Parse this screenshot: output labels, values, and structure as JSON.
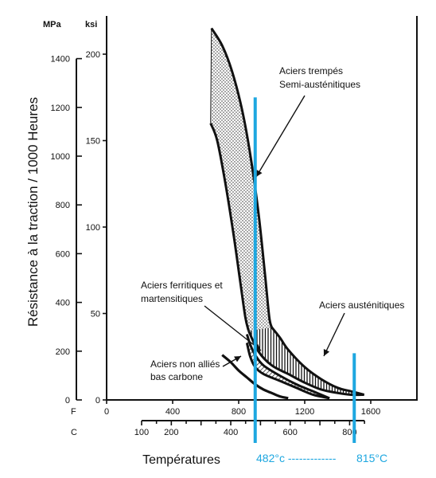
{
  "chart_data": {
    "type": "area",
    "ylabel": "Résistance à la traction / 1000 Heures",
    "xlabel": "Températures",
    "units": {
      "mpa": "MPa",
      "ksi": "ksi",
      "f": "F",
      "c": "C"
    },
    "mpa_ticks": [
      "0",
      "200",
      "400",
      "600",
      "800",
      "1000",
      "1200",
      "1400"
    ],
    "ksi_ticks": [
      "0",
      "50",
      "100",
      "150",
      "200"
    ],
    "f_ticks": [
      "0",
      "400",
      "800",
      "1200",
      "1600"
    ],
    "c_ticks": [
      "100",
      "200",
      "400",
      "600",
      "800"
    ],
    "xlim_F": [
      0,
      1920
    ],
    "ylim_ksi": [
      0,
      220
    ],
    "series": [
      {
        "name": "Aciers trempés Semi-austénitiques",
        "label_lines": [
          "Aciers trempés",
          "Semi-austénitiques"
        ],
        "fill": "dots",
        "upper": [
          [
            635,
            215
          ],
          [
            700,
            205
          ],
          [
            760,
            190
          ],
          [
            820,
            168
          ],
          [
            870,
            142
          ],
          [
            920,
            108
          ],
          [
            960,
            72
          ],
          [
            985,
            48
          ],
          [
            1000,
            42
          ]
        ],
        "lower": [
          [
            630,
            160
          ],
          [
            670,
            150
          ],
          [
            720,
            125
          ],
          [
            770,
            95
          ],
          [
            810,
            68
          ],
          [
            840,
            48
          ],
          [
            860,
            40
          ]
        ]
      },
      {
        "name": "Aciers austénitiques",
        "label_lines": [
          "Aciers austénitiques"
        ],
        "fill": "vertical-hatch",
        "upper": [
          [
            1000,
            42
          ],
          [
            1050,
            36
          ],
          [
            1100,
            29
          ],
          [
            1200,
            19
          ],
          [
            1300,
            12
          ],
          [
            1400,
            7
          ],
          [
            1480,
            5
          ],
          [
            1560,
            3
          ]
        ],
        "lower": [
          [
            860,
            40
          ],
          [
            920,
            28
          ],
          [
            1000,
            20
          ],
          [
            1100,
            15
          ],
          [
            1200,
            10
          ],
          [
            1300,
            6
          ],
          [
            1400,
            4
          ],
          [
            1480,
            3
          ],
          [
            1560,
            3
          ]
        ]
      },
      {
        "name": "Aciers ferritiques et martensitiques",
        "label_lines": [
          "Aciers ferritiques et",
          "martensitiques"
        ],
        "fill": "diagonal-hatch",
        "upper": [
          [
            850,
            38
          ],
          [
            870,
            32
          ],
          [
            900,
            26
          ],
          [
            950,
            20
          ],
          [
            1050,
            14
          ],
          [
            1150,
            9
          ],
          [
            1250,
            5
          ],
          [
            1350,
            1
          ]
        ],
        "lower": [
          [
            850,
            33
          ],
          [
            870,
            25
          ],
          [
            900,
            19
          ],
          [
            950,
            15
          ],
          [
            1050,
            11
          ],
          [
            1150,
            7
          ],
          [
            1250,
            3
          ],
          [
            1350,
            1
          ]
        ]
      },
      {
        "name": "Aciers non alliés bas carbone",
        "label_lines": [
          "Aciers non alliés",
          "bas carbone"
        ],
        "fill": "none",
        "curve": [
          [
            700,
            26
          ],
          [
            750,
            22
          ],
          [
            800,
            17
          ],
          [
            850,
            13
          ],
          [
            900,
            9
          ],
          [
            950,
            6
          ],
          [
            1000,
            4
          ],
          [
            1050,
            2
          ],
          [
            1100,
            1
          ]
        ]
      }
    ],
    "markers": [
      {
        "label": "482°c -------------",
        "temp_F": 900,
        "ksi_top": 175
      },
      {
        "label": "815°C",
        "temp_F": 1500,
        "ksi_top": 27
      }
    ],
    "marker_color": "#1ea7e0"
  }
}
